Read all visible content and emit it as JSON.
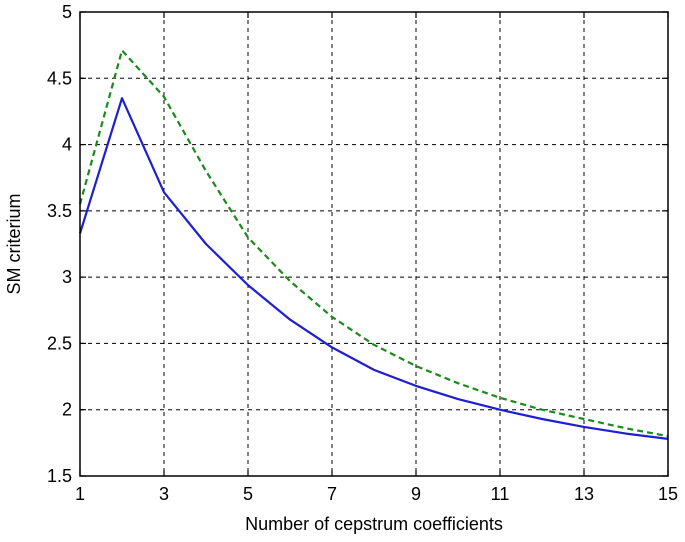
{
  "chart_data": {
    "type": "line",
    "title": "",
    "xlabel": "Number of cepstrum coefficients",
    "ylabel": "SM criterium",
    "xlim": [
      1,
      15
    ],
    "ylim": [
      1.5,
      5
    ],
    "xticks": [
      1,
      3,
      5,
      7,
      9,
      11,
      13,
      15
    ],
    "yticks": [
      1.5,
      2,
      2.5,
      3,
      3.5,
      4,
      4.5,
      5
    ],
    "grid": true,
    "legend": "none",
    "series": [
      {
        "color": "#1f1fcf",
        "style": "solid",
        "x": [
          1,
          2,
          3,
          4,
          5,
          6,
          7,
          8,
          9,
          10,
          11,
          12,
          13,
          14,
          15
        ],
        "y": [
          3.33,
          4.35,
          3.64,
          3.25,
          2.94,
          2.68,
          2.47,
          2.3,
          2.18,
          2.08,
          2.0,
          1.93,
          1.87,
          1.82,
          1.78
        ]
      },
      {
        "color": "#1a8a1a",
        "style": "dashed",
        "x": [
          1,
          2,
          3,
          4,
          5,
          6,
          7,
          8,
          9,
          10,
          11,
          12,
          13,
          14,
          15
        ],
        "y": [
          3.55,
          4.71,
          4.36,
          3.8,
          3.3,
          2.97,
          2.7,
          2.49,
          2.33,
          2.2,
          2.09,
          2.0,
          1.93,
          1.86,
          1.8
        ]
      }
    ]
  }
}
